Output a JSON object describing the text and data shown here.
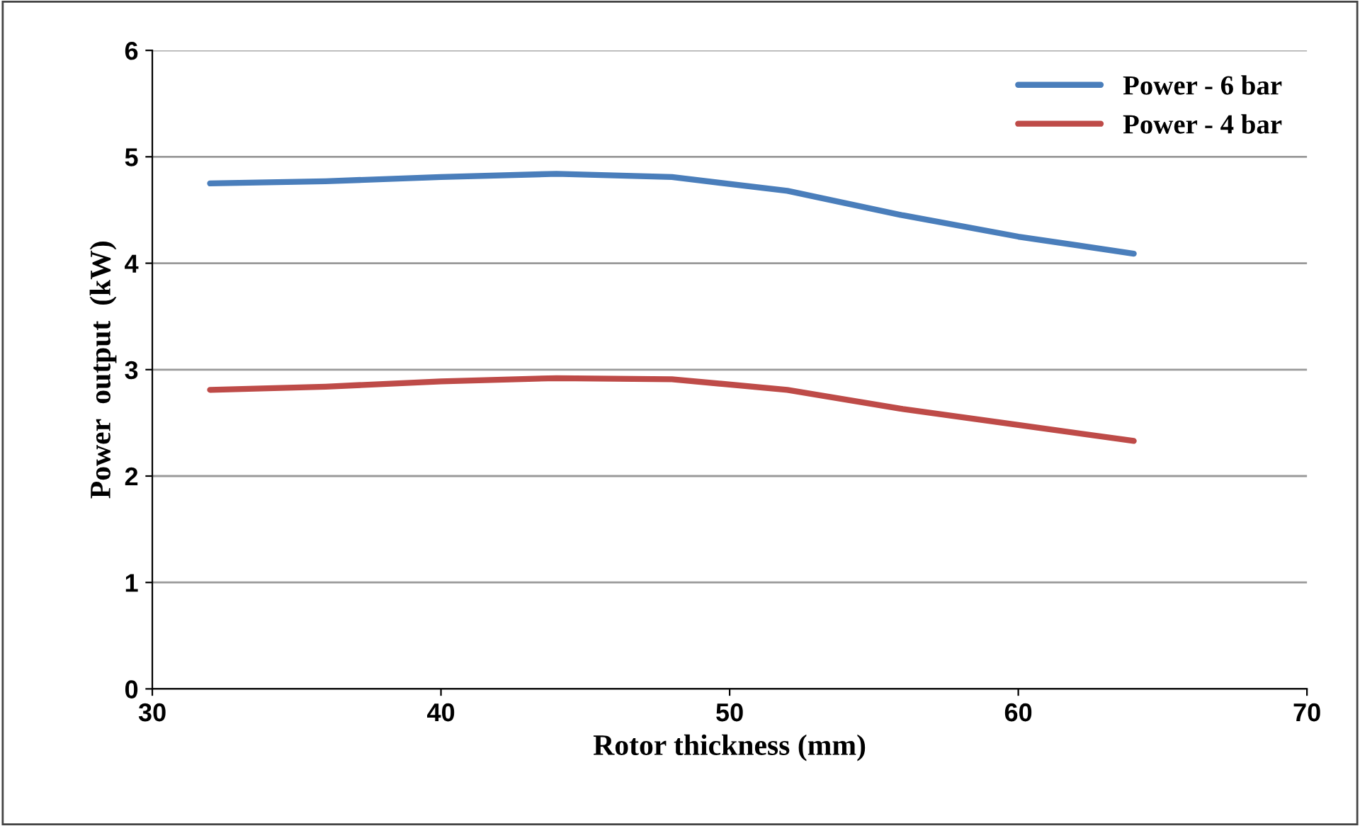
{
  "chart_data": {
    "type": "line",
    "xlabel": "Rotor thickness (mm)",
    "ylabel": "Power  output  (kW)",
    "xlim": [
      30,
      70
    ],
    "xticks": [
      30,
      40,
      50,
      60,
      70
    ],
    "ylim": [
      0,
      6
    ],
    "yticks": [
      0,
      1,
      2,
      3,
      4,
      5,
      6
    ],
    "grid": "y",
    "legend": "top right",
    "marker": "none",
    "line_style": "solid",
    "series": [
      {
        "name": "Power - 6 bar",
        "color": "#4a7ebb",
        "x": [
          32,
          36,
          40,
          44,
          48,
          52,
          56,
          60,
          64
        ],
        "values": [
          4.75,
          4.77,
          4.81,
          4.84,
          4.81,
          4.68,
          4.45,
          4.25,
          4.09
        ]
      },
      {
        "name": "Power - 4 bar",
        "color": "#be4b48",
        "x": [
          32,
          36,
          40,
          44,
          48,
          52,
          56,
          60,
          64
        ],
        "values": [
          2.81,
          2.84,
          2.89,
          2.92,
          2.91,
          2.81,
          2.63,
          2.48,
          2.33
        ]
      }
    ]
  }
}
